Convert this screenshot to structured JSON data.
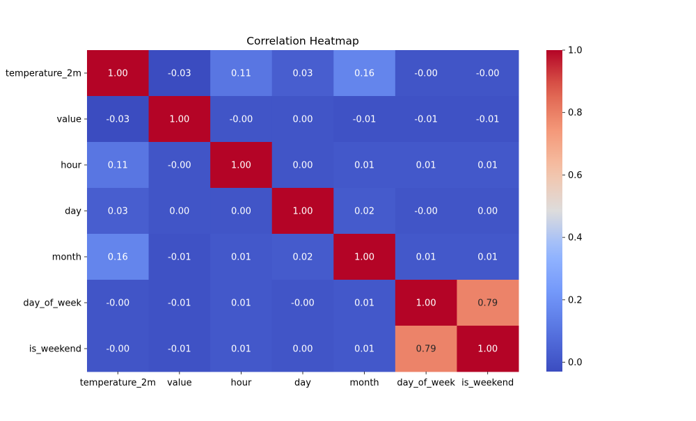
{
  "chart_data": {
    "type": "heatmap",
    "title": "Correlation Heatmap",
    "xlabel": "",
    "ylabel": "",
    "categories": [
      "temperature_2m",
      "value",
      "hour",
      "day",
      "month",
      "day_of_week",
      "is_weekend"
    ],
    "matrix": [
      [
        1.0,
        -0.03,
        0.11,
        0.03,
        0.16,
        -0.0,
        -0.0
      ],
      [
        -0.03,
        1.0,
        -0.0,
        0.0,
        -0.01,
        -0.01,
        -0.01
      ],
      [
        0.11,
        -0.0,
        1.0,
        0.0,
        0.01,
        0.01,
        0.01
      ],
      [
        0.03,
        0.0,
        0.0,
        1.0,
        0.02,
        -0.0,
        0.0
      ],
      [
        0.16,
        -0.01,
        0.01,
        0.02,
        1.0,
        0.01,
        0.01
      ],
      [
        -0.0,
        -0.01,
        0.01,
        -0.0,
        0.01,
        1.0,
        0.79
      ],
      [
        -0.0,
        -0.01,
        0.01,
        0.0,
        0.01,
        0.79,
        1.0
      ]
    ],
    "cell_labels": [
      [
        "1.00",
        "-0.03",
        "0.11",
        "0.03",
        "0.16",
        "-0.00",
        "-0.00"
      ],
      [
        "-0.03",
        "1.00",
        "-0.00",
        "0.00",
        "-0.01",
        "-0.01",
        "-0.01"
      ],
      [
        "0.11",
        "-0.00",
        "1.00",
        "0.00",
        "0.01",
        "0.01",
        "0.01"
      ],
      [
        "0.03",
        "0.00",
        "0.00",
        "1.00",
        "0.02",
        "-0.00",
        "0.00"
      ],
      [
        "0.16",
        "-0.01",
        "0.01",
        "0.02",
        "1.00",
        "0.01",
        "0.01"
      ],
      [
        "-0.00",
        "-0.01",
        "0.01",
        "-0.00",
        "0.01",
        "1.00",
        "0.79"
      ],
      [
        "-0.00",
        "-0.01",
        "0.01",
        "0.00",
        "0.01",
        "0.79",
        "1.00"
      ]
    ],
    "colormap": "coolwarm",
    "color_range": [
      -0.03,
      1.0
    ],
    "colorbar": {
      "ticks": [
        0.0,
        0.2,
        0.4,
        0.6,
        0.8,
        1.0
      ],
      "tick_labels": [
        "0.0",
        "0.2",
        "0.4",
        "0.6",
        "0.8",
        "1.0"
      ],
      "placement": "right"
    },
    "grid": false
  }
}
